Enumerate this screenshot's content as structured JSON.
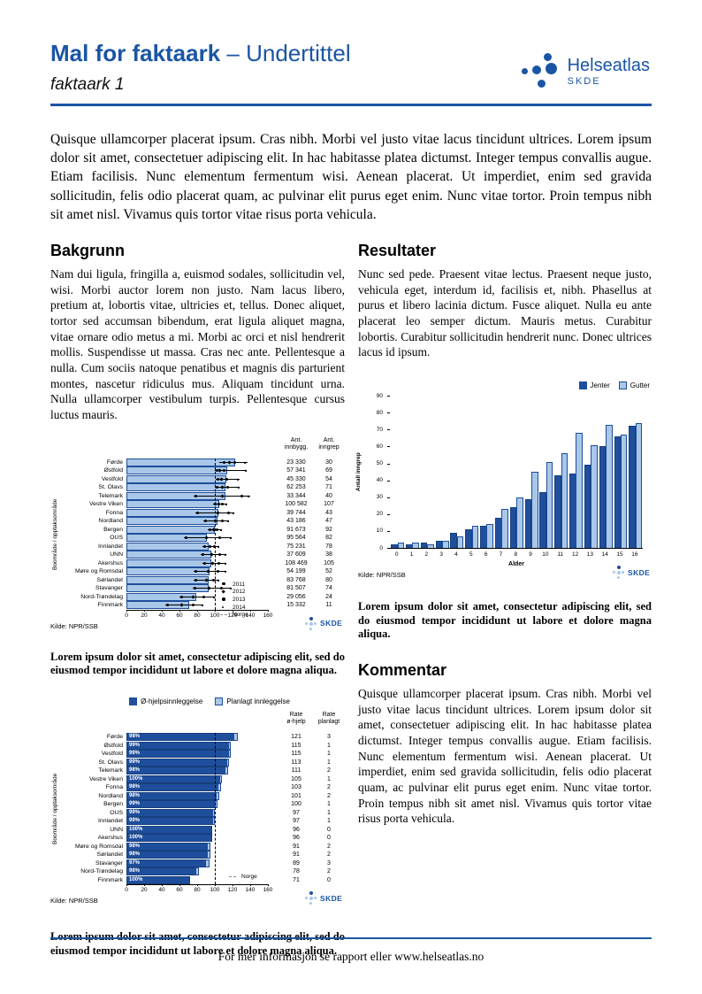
{
  "colors": {
    "brand": "#1A55A4",
    "bar_dark": "#1F4E9C",
    "bar_light": "#A9C7E8"
  },
  "header": {
    "title_bold": "Mal for faktaark",
    "title_light": " – Undertittel",
    "subtitle": "faktaark 1",
    "logo_name": "Helseatlas",
    "logo_sub": "SKDE"
  },
  "intro": "Quisque ullamcorper placerat ipsum. Cras nibh. Morbi vel justo vitae lacus tincidunt ultrices. Lorem ipsum dolor sit amet, consectetuer adipiscing elit. In hac habitasse platea dictumst. Integer tempus convallis augue. Etiam facilisis. Nunc elementum fermentum wisi. Aenean placerat. Ut imperdiet, enim sed gravida sollicitudin, felis odio placerat quam, ac pulvinar elit purus eget enim. Nunc vitae tortor. Proin tempus nibh sit amet nisl. Vivamus quis tortor vitae risus porta vehicula.",
  "sections": {
    "bakgrunn": {
      "heading": "Bakgrunn",
      "body": "Nam dui ligula, fringilla a, euismod sodales, sollicitudin vel, wisi. Morbi auctor lorem non justo. Nam lacus libero, pretium at, lobortis vitae, ultricies et, tellus. Donec aliquet, tortor sed accumsan bibendum, erat ligula aliquet magna, vitae ornare odio metus a mi. Morbi ac orci et nisl hendrerit mollis. Suspendisse ut massa. Cras nec ante. Pellentesque a nulla. Cum sociis natoque penatibus et magnis dis parturient montes, nascetur ridiculus mus. Aliquam tincidunt urna. Nulla ullamcorper vestibulum turpis. Pellentesque cursus luctus mauris."
    },
    "resultater": {
      "heading": "Resultater",
      "body": "Nunc sed pede. Praesent vitae lectus. Praesent neque justo, vehicula eget, interdum id, facilisis et, nibh. Phasellus at purus et libero lacinia dictum. Fusce aliquet. Nulla eu ante placerat leo semper dictum. Mauris metus. Curabitur lobortis. Curabitur sollicitudin hendrerit nunc. Donec ultrices lacus id ipsum."
    },
    "kommentar": {
      "heading": "Kommentar",
      "body": "Quisque ullamcorper placerat ipsum. Cras nibh. Morbi vel justo vitae lacus tincidunt ultrices. Lorem ipsum dolor sit amet, consectetuer adipiscing elit. In hac habitasse platea dictumst. Integer tempus convallis augue. Etiam facilisis. Nunc elementum fermentum wisi. Aenean placerat. Ut imperdiet, enim sed gravida sollicitudin, felis odio placerat quam, ac pulvinar elit purus eget enim. Nunc vitae tortor. Proin tempus nibh sit amet nisl. Vivamus quis tortor vitae risus porta vehicula."
    }
  },
  "captions": {
    "chart1": "Lorem ipsum dolor sit amet, consectetur adipiscing elit, sed do eiusmod tempor incididunt ut labore et dolore magna aliqua.",
    "chart2": "Lorem ipsum dolor sit amet, consectetur adipiscing elit, sed do eiusmod tempor incididunt ut labore et dolore magna aliqua.",
    "chart3": "Lorem ipsum dolor sit amet, consectetur adipiscing elit, sed do eiusmod tempor incididunt ut labore et dolore magna aliqua."
  },
  "footer": {
    "text": "For mer informasjon se rapport eller www.helseatlas.no"
  },
  "chart_data": [
    {
      "type": "bar",
      "orientation": "horizontal",
      "ylabel": "Boområde / opptaksområde",
      "xlim": [
        0,
        160
      ],
      "xticks": [
        0,
        20,
        40,
        60,
        80,
        100,
        120,
        140,
        160
      ],
      "reference_line": 100,
      "col_headers": [
        "Ant.\ninnbygg.",
        "Ant.\ninngrep"
      ],
      "legend": [
        {
          "label": "2011",
          "marker": "circle"
        },
        {
          "label": "2012",
          "marker": "diamond"
        },
        {
          "label": "2013",
          "marker": "circle"
        },
        {
          "label": "2014",
          "marker": "triangle"
        },
        {
          "label": "Norge",
          "marker": "dash"
        }
      ],
      "source": "Kilde: NPR/SSB",
      "logo": "SKDE",
      "rows": [
        {
          "label": "Førde",
          "value": 122,
          "lo": 105,
          "hi": 137,
          "markers": [
            110,
            116,
            122,
            134
          ],
          "innbygg": "23 330",
          "inngrep": "30"
        },
        {
          "label": "Østfold",
          "value": 113,
          "lo": 100,
          "hi": 136,
          "markers": [
            102,
            105,
            110,
            135
          ],
          "innbygg": "57 341",
          "inngrep": "69"
        },
        {
          "label": "Vestfold",
          "value": 112,
          "lo": 101,
          "hi": 128,
          "markers": [
            103,
            107,
            113,
            126
          ],
          "innbygg": "45 330",
          "inngrep": "54"
        },
        {
          "label": "St. Olavs",
          "value": 111,
          "lo": 100,
          "hi": 128,
          "markers": [
            102,
            108,
            114,
            127
          ],
          "innbygg": "62 253",
          "inngrep": "71"
        },
        {
          "label": "Telemark",
          "value": 111,
          "lo": 76,
          "hi": 140,
          "markers": [
            78,
            108,
            130,
            138
          ],
          "innbygg": "33 344",
          "inngrep": "40"
        },
        {
          "label": "Vestre Viken",
          "value": 104,
          "lo": 98,
          "hi": 114,
          "markers": [
            100,
            104,
            108,
            113
          ],
          "innbygg": "100 582",
          "inngrep": "107"
        },
        {
          "label": "Fonna",
          "value": 103,
          "lo": 78,
          "hi": 122,
          "markers": [
            80,
            103,
            115,
            121
          ],
          "innbygg": "39 744",
          "inngrep": "43"
        },
        {
          "label": "Nordland",
          "value": 102,
          "lo": 87,
          "hi": 116,
          "markers": [
            89,
            100,
            108,
            115
          ],
          "innbygg": "43 186",
          "inngrep": "47"
        },
        {
          "label": "Bergen",
          "value": 99,
          "lo": 92,
          "hi": 108,
          "markers": [
            94,
            98,
            102,
            107
          ],
          "innbygg": "91 673",
          "inngrep": "92"
        },
        {
          "label": "OUS",
          "value": 90,
          "lo": 65,
          "hi": 119,
          "markers": [
            67,
            90,
            105,
            118
          ],
          "innbygg": "95 564",
          "inngrep": "82"
        },
        {
          "label": "Innlandet",
          "value": 92,
          "lo": 86,
          "hi": 105,
          "markers": [
            88,
            94,
            99,
            104
          ],
          "innbygg": "75 231",
          "inngrep": "78"
        },
        {
          "label": "UNN",
          "value": 95,
          "lo": 84,
          "hi": 113,
          "markers": [
            86,
            96,
            105,
            112
          ],
          "innbygg": "37 609",
          "inngrep": "38"
        },
        {
          "label": "Akershus",
          "value": 95,
          "lo": 86,
          "hi": 113,
          "markers": [
            88,
            97,
            104,
            112
          ],
          "innbygg": "108 469",
          "inngrep": "105"
        },
        {
          "label": "Møre og Romsdal",
          "value": 93,
          "lo": 76,
          "hi": 113,
          "markers": [
            78,
            92,
            103,
            112
          ],
          "innbygg": "54 199",
          "inngrep": "52"
        },
        {
          "label": "Sørlandet",
          "value": 92,
          "lo": 76,
          "hi": 105,
          "markers": [
            78,
            90,
            98,
            104
          ],
          "innbygg": "83 768",
          "inngrep": "80"
        },
        {
          "label": "Stavanger",
          "value": 92,
          "lo": 75,
          "hi": 119,
          "markers": [
            77,
            93,
            107,
            118
          ],
          "innbygg": "81 507",
          "inngrep": "74"
        },
        {
          "label": "Nord-Trøndelag",
          "value": 78,
          "lo": 60,
          "hi": 100,
          "markers": [
            62,
            75,
            87,
            99
          ],
          "innbygg": "29 056",
          "inngrep": "24"
        },
        {
          "label": "Finnmark",
          "value": 70,
          "lo": 44,
          "hi": 87,
          "markers": [
            46,
            62,
            75,
            86
          ],
          "innbygg": "15 332",
          "inngrep": "11"
        }
      ]
    },
    {
      "type": "bar",
      "grouped": true,
      "xlabel": "Alder",
      "ylabel": "Antall inngrep",
      "categories": [
        "0",
        "1",
        "2",
        "3",
        "4",
        "5",
        "6",
        "7",
        "8",
        "9",
        "10",
        "11",
        "12",
        "13",
        "14",
        "15",
        "16"
      ],
      "series": [
        {
          "name": "Jenter",
          "values": [
            2,
            2,
            3,
            4,
            9,
            11,
            13,
            18,
            24,
            29,
            33,
            43,
            44,
            49,
            60,
            66,
            72
          ]
        },
        {
          "name": "Gutter",
          "values": [
            3,
            3,
            2,
            4,
            7,
            13,
            14,
            23,
            30,
            45,
            51,
            56,
            68,
            61,
            73,
            67,
            74
          ]
        }
      ],
      "ylim": [
        0,
        90
      ],
      "yticks": [
        0,
        10,
        20,
        30,
        40,
        50,
        60,
        70,
        80,
        90
      ],
      "legend_position": "top-right",
      "source": "Kilde: NPR/SSB",
      "logo": "SKDE"
    },
    {
      "type": "bar",
      "orientation": "horizontal",
      "stacked": true,
      "ylabel": "Boområde / opptaksområde",
      "xlim": [
        0,
        160
      ],
      "xticks": [
        0,
        20,
        40,
        60,
        80,
        100,
        120,
        140,
        160
      ],
      "reference_line": 100,
      "legend": [
        {
          "label": "Ø-hjelpsinnleggelse",
          "swatch": "dark"
        },
        {
          "label": "Planlagt innleggelse",
          "swatch": "light"
        }
      ],
      "norge_legend": "Norge",
      "col_headers": [
        "Rate\nø-hjelp",
        "Rate\nplanlagt"
      ],
      "source": "Kilde: NPR/SSB",
      "logo": "SKDE",
      "rows": [
        {
          "label": "Førde",
          "ohjelp": 121,
          "planlagt": 3,
          "pct": "98%"
        },
        {
          "label": "Østfold",
          "ohjelp": 115,
          "planlagt": 1,
          "pct": "99%"
        },
        {
          "label": "Vestfold",
          "ohjelp": 115,
          "planlagt": 1,
          "pct": "99%"
        },
        {
          "label": "St. Olavs",
          "ohjelp": 113,
          "planlagt": 1,
          "pct": "99%"
        },
        {
          "label": "Telemark",
          "ohjelp": 111,
          "planlagt": 2,
          "pct": "98%"
        },
        {
          "label": "Vestre Viken",
          "ohjelp": 105,
          "planlagt": 1,
          "pct": "100%"
        },
        {
          "label": "Fonna",
          "ohjelp": 103,
          "planlagt": 2,
          "pct": "98%"
        },
        {
          "label": "Nordland",
          "ohjelp": 101,
          "planlagt": 2,
          "pct": "98%"
        },
        {
          "label": "Bergen",
          "ohjelp": 100,
          "planlagt": 1,
          "pct": "99%"
        },
        {
          "label": "OUS",
          "ohjelp": 97,
          "planlagt": 1,
          "pct": "99%"
        },
        {
          "label": "Innlandet",
          "ohjelp": 97,
          "planlagt": 1,
          "pct": "99%"
        },
        {
          "label": "UNN",
          "ohjelp": 96,
          "planlagt": 0,
          "pct": "100%"
        },
        {
          "label": "Akershus",
          "ohjelp": 96,
          "planlagt": 0,
          "pct": "100%"
        },
        {
          "label": "Møre og Romsdal",
          "ohjelp": 91,
          "planlagt": 2,
          "pct": "98%"
        },
        {
          "label": "Sørlandet",
          "ohjelp": 91,
          "planlagt": 2,
          "pct": "98%"
        },
        {
          "label": "Stavanger",
          "ohjelp": 89,
          "planlagt": 3,
          "pct": "97%"
        },
        {
          "label": "Nord-Trøndelag",
          "ohjelp": 78,
          "planlagt": 2,
          "pct": "98%"
        },
        {
          "label": "Finnmark",
          "ohjelp": 71,
          "planlagt": 0,
          "pct": "100%"
        }
      ]
    }
  ]
}
